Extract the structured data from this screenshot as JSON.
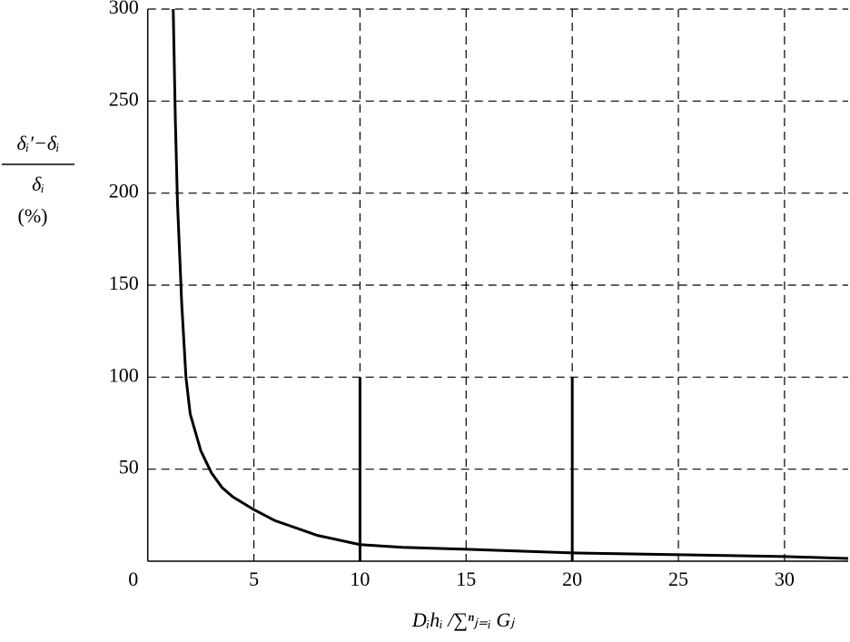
{
  "chart_data": {
    "type": "line",
    "y_label_numerator": "δᵢ′−δᵢ",
    "y_label_denominator": "δᵢ",
    "y_label_unit": "(%)",
    "x_label": "Dᵢhᵢ /∑ⁿⱼ₌ᵢ Gⱼ",
    "x": [
      1.2,
      1.3,
      1.4,
      1.6,
      1.8,
      2,
      2.5,
      3,
      3.5,
      4,
      5,
      6,
      7,
      8,
      10,
      12,
      15,
      20,
      25,
      30,
      33
    ],
    "series": [
      {
        "color": "#000000",
        "values": [
          300,
          240,
          195,
          140,
          100,
          80,
          60,
          48,
          40,
          35,
          28,
          22,
          18,
          14,
          9,
          7.5,
          6.5,
          4.5,
          3.5,
          2.5,
          1.5
        ]
      }
    ],
    "markers": {
      "x": [
        10,
        20
      ],
      "values": [
        100,
        100
      ]
    },
    "xlim": [
      0,
      33
    ],
    "ylim": [
      0,
      300
    ],
    "xticks": [
      0,
      5,
      10,
      15,
      20,
      25,
      30
    ],
    "yticks": [
      50,
      100,
      150,
      200,
      250,
      300
    ],
    "grid": true
  }
}
